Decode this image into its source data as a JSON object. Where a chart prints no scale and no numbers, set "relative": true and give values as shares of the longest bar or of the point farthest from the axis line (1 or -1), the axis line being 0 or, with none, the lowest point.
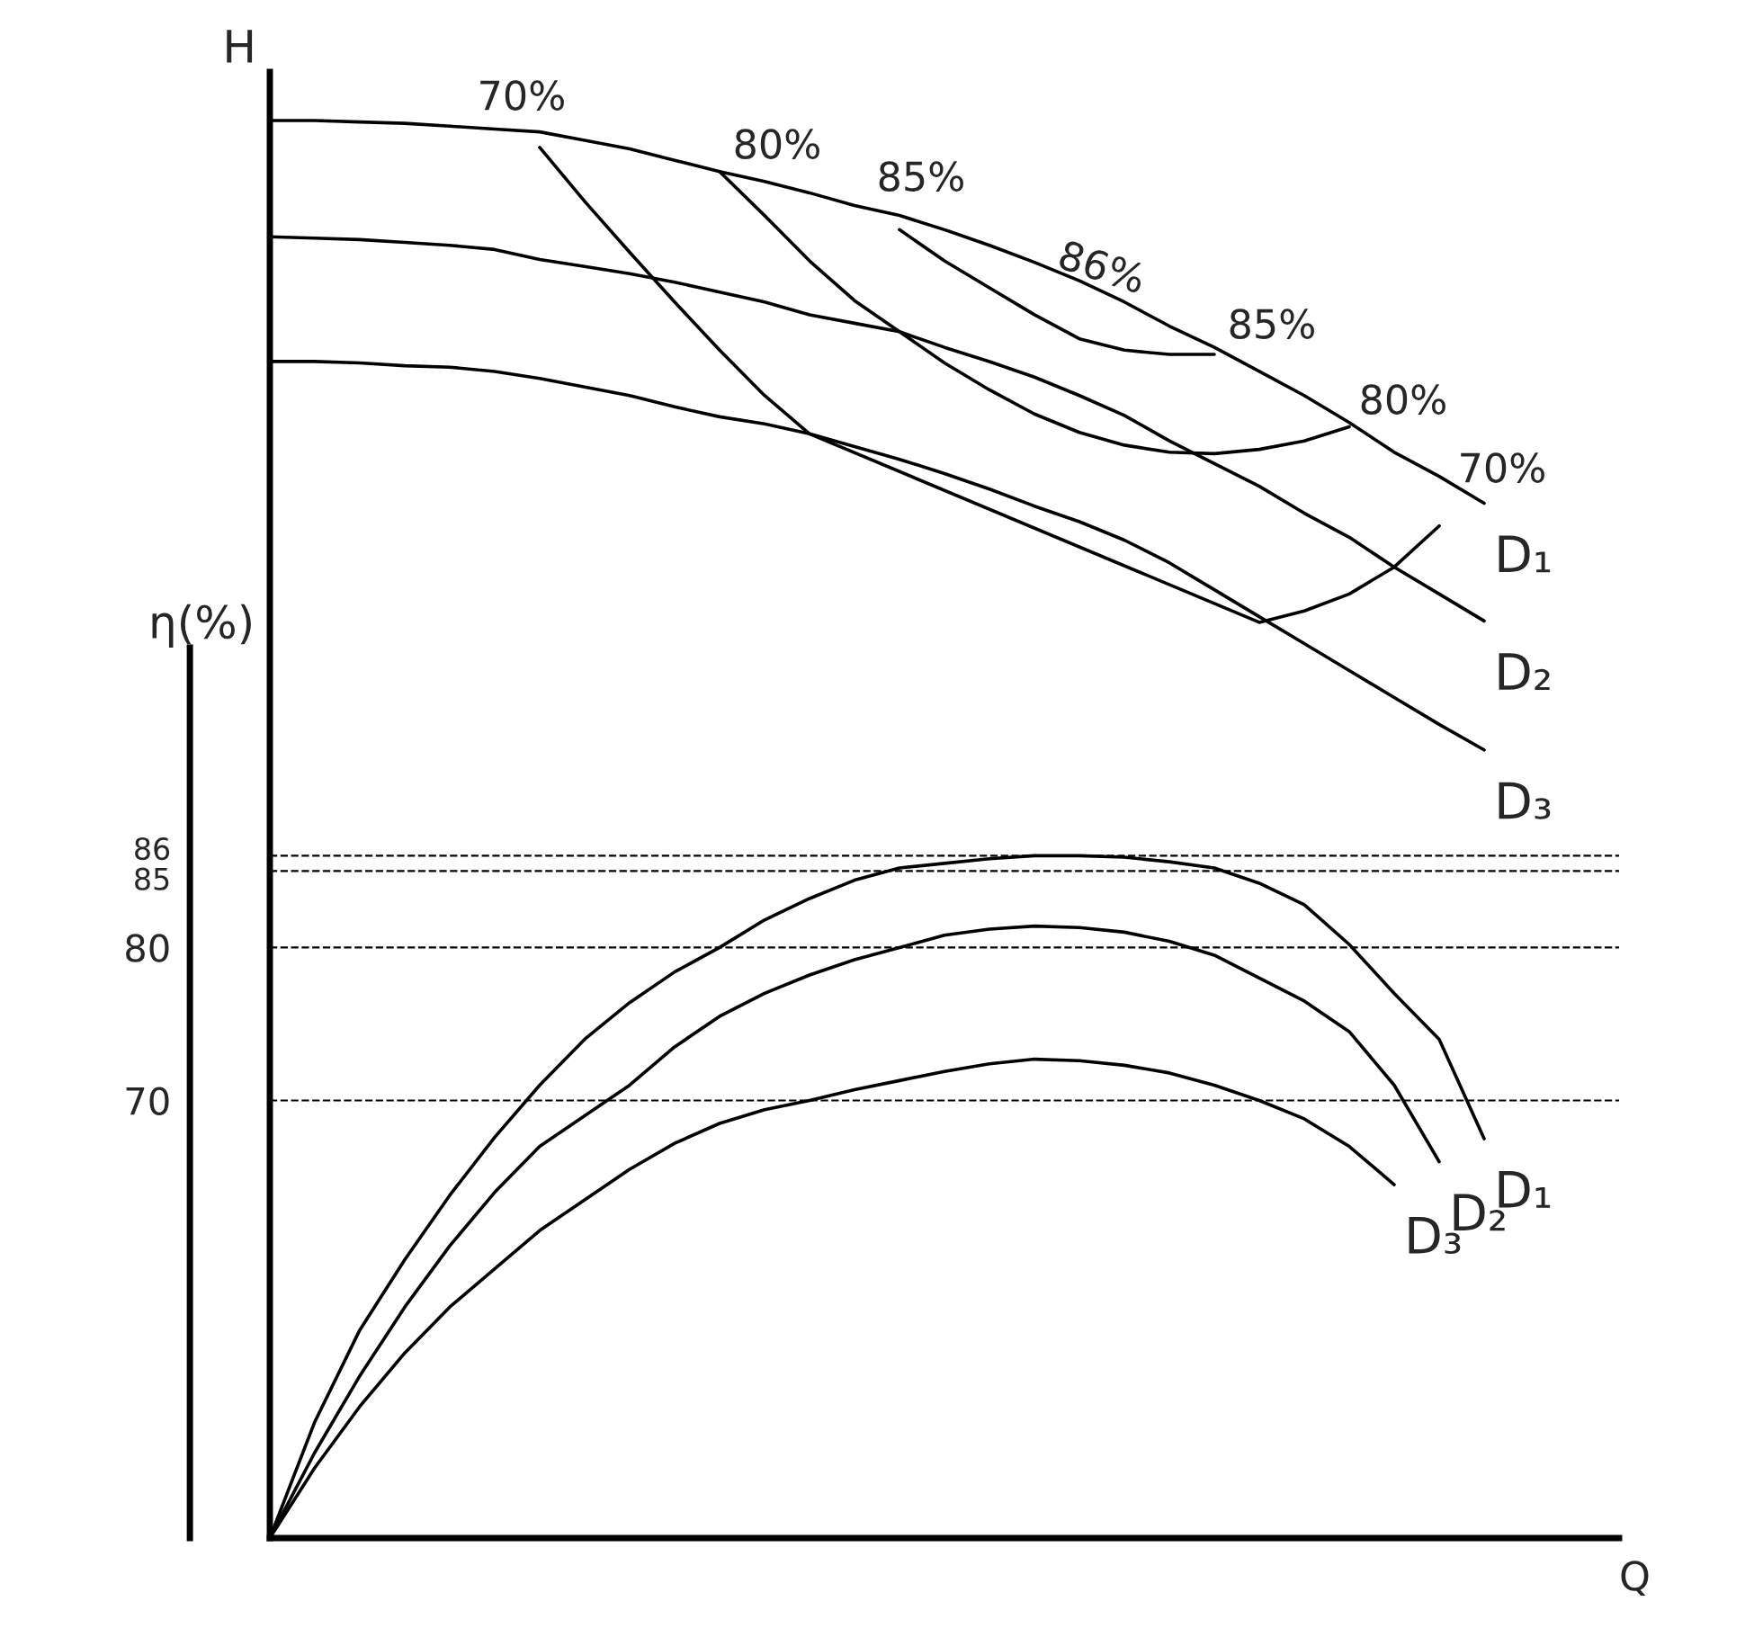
{
  "chart_data": [
    {
      "type": "line",
      "relative": true,
      "ylabel": "H",
      "xlabel": "Q",
      "legend": false,
      "tick_labels": false,
      "marker": "none",
      "line_style": "solid",
      "categories": [
        null,
        null,
        null,
        null,
        null,
        null,
        null,
        null,
        null,
        null,
        null,
        null,
        null,
        null,
        null,
        null,
        null,
        null,
        null,
        null,
        null,
        null,
        null,
        null,
        null,
        null,
        null,
        null,
        null,
        null,
        null
      ],
      "series": [
        {
          "name": "D₁",
          "color": "#000000",
          "values": [
            1.0,
            1.0,
            0.999,
            0.998,
            0.996,
            0.994,
            0.992,
            0.986,
            0.98,
            0.972,
            0.964,
            0.957,
            0.949,
            0.94,
            0.933,
            0.923,
            0.912,
            0.9,
            0.887,
            0.872,
            0.855,
            0.84,
            0.823,
            0.806,
            0.787,
            0.766,
            0.749,
            0.73,
            null,
            null,
            null
          ]
        },
        {
          "name": "D₂",
          "color": "#000000",
          "values": [
            0.918,
            0.917,
            0.916,
            0.914,
            0.912,
            0.909,
            0.902,
            0.897,
            0.892,
            0.886,
            0.879,
            0.872,
            0.863,
            0.857,
            0.851,
            0.84,
            0.83,
            0.819,
            0.806,
            0.792,
            0.774,
            0.758,
            0.742,
            0.723,
            0.706,
            0.685,
            0.666,
            0.647,
            null,
            null,
            null
          ]
        },
        {
          "name": "D₃",
          "color": "#000000",
          "values": [
            0.83,
            0.83,
            0.829,
            0.827,
            0.826,
            0.823,
            0.818,
            0.812,
            0.806,
            0.798,
            0.791,
            0.786,
            0.779,
            0.77,
            0.761,
            0.751,
            0.74,
            0.728,
            0.717,
            0.704,
            0.688,
            0.669,
            0.65,
            0.631,
            0.612,
            0.593,
            0.574,
            0.556,
            null,
            null,
            null
          ]
        },
        {
          "color": "#000000",
          "values": [
            null,
            null,
            null,
            null,
            null,
            null,
            0.981,
            0.943,
            0.907,
            0.872,
            0.838,
            0.806,
            0.779,
            null,
            null,
            null,
            null,
            null,
            null,
            null,
            null,
            null,
            0.646,
            0.654,
            0.666,
            0.685,
            0.714,
            null,
            null,
            null,
            null
          ]
        },
        {
          "color": "#000000",
          "values": [
            null,
            null,
            null,
            null,
            null,
            null,
            null,
            null,
            null,
            null,
            0.964,
            0.933,
            0.901,
            0.873,
            0.851,
            0.829,
            0.81,
            0.793,
            0.78,
            0.771,
            0.766,
            0.765,
            0.768,
            0.774,
            0.784,
            null,
            null,
            null,
            null,
            null,
            null
          ]
        },
        {
          "color": "#000000",
          "values": [
            null,
            null,
            null,
            null,
            null,
            null,
            null,
            null,
            null,
            null,
            null,
            null,
            null,
            null,
            0.923,
            0.901,
            0.882,
            0.863,
            0.846,
            0.838,
            0.835,
            0.835,
            null,
            null,
            null,
            null,
            null,
            null,
            null,
            null,
            null
          ]
        }
      ],
      "annotations": [
        "70%",
        "80%",
        "85%",
        "86%",
        "85%",
        "80%",
        "70%"
      ]
    },
    {
      "type": "line",
      "ylabel": "η(%)",
      "legend": false,
      "tick_labels": "y",
      "marker": "none",
      "line_style": "solid",
      "categories": [
        null,
        null,
        null,
        null,
        null,
        null,
        null,
        null,
        null,
        null,
        null,
        null,
        null,
        null,
        null,
        null,
        null,
        null,
        null,
        null,
        null,
        null,
        null,
        null,
        null,
        null,
        null,
        null,
        null,
        null,
        null
      ],
      "ylim": [
        41.4,
        99.6
      ],
      "yticks": [
        70,
        80,
        85,
        86
      ],
      "ref_lines": [
        {
          "axis": "y",
          "value": 86,
          "color": "#000000",
          "line_style": "dashed"
        },
        {
          "axis": "y",
          "value": 85,
          "color": "#000000",
          "line_style": "dashed"
        },
        {
          "axis": "y",
          "value": 80,
          "color": "#000000",
          "line_style": "dashed"
        },
        {
          "axis": "y",
          "value": 70,
          "color": "#000000",
          "line_style": "dashed"
        }
      ],
      "series": [
        {
          "name": "D₁",
          "color": "#000000",
          "values": [
            41.4,
            49,
            55,
            59.6,
            63.8,
            67.6,
            71,
            74,
            76.4,
            78.4,
            80,
            81.8,
            83.2,
            84.4,
            85.2,
            85.5,
            85.8,
            86,
            86,
            85.9,
            85.6,
            85.2,
            84.2,
            82.8,
            80.2,
            77,
            74,
            67.5,
            null,
            null,
            null
          ]
        },
        {
          "name": "D₂",
          "color": "#000000",
          "values": [
            41.4,
            47,
            52,
            56.5,
            60.5,
            64,
            67,
            69,
            71,
            73.5,
            75.5,
            77,
            78.2,
            79.2,
            80,
            80.8,
            81.2,
            81.4,
            81.3,
            81,
            80.4,
            79.5,
            78,
            76.5,
            74.5,
            71,
            66,
            null,
            null,
            null,
            null
          ]
        },
        {
          "name": "D₃",
          "color": "#000000",
          "values": [
            41.4,
            46,
            50,
            53.5,
            56.5,
            59,
            61.5,
            63.5,
            65.5,
            67.2,
            68.5,
            69.4,
            70,
            70.7,
            71.3,
            71.9,
            72.4,
            72.7,
            72.6,
            72.3,
            71.8,
            71,
            70,
            68.8,
            67,
            64.5,
            null,
            null,
            null,
            null,
            null
          ]
        }
      ]
    }
  ]
}
